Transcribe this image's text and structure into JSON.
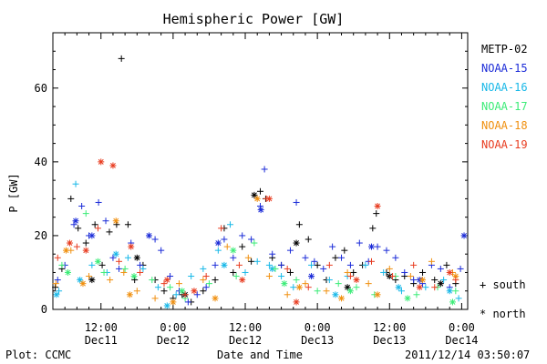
{
  "chart_data": {
    "type": "scatter",
    "title": "Hemispheric Power [GW]",
    "ylabel": "P [GW]",
    "xlabel": "Date and Time",
    "ylim": [
      0,
      75
    ],
    "xlim": [
      "2011-12-11 04:00",
      "2011-12-14 01:00"
    ],
    "yticks": [
      0,
      20,
      40,
      60
    ],
    "xtick_labels": [
      {
        "time": "12:00",
        "date": "Dec11"
      },
      {
        "time": "0:00",
        "date": "Dec12"
      },
      {
        "time": "12:00",
        "date": "Dec12"
      },
      {
        "time": "0:00",
        "date": "Dec13"
      },
      {
        "time": "12:00",
        "date": "Dec13"
      },
      {
        "time": "0:00",
        "date": "Dec14"
      }
    ],
    "markers": {
      "south_label": "+ south",
      "north_label": "* north"
    },
    "series": [
      {
        "name": "METP-02",
        "color": "#000000",
        "points": [
          [
            0.4,
            6
          ],
          [
            1.5,
            11
          ],
          [
            3.0,
            30
          ],
          [
            4.2,
            22
          ],
          [
            5.5,
            18
          ],
          [
            7.0,
            23
          ],
          [
            8.2,
            12
          ],
          [
            9.4,
            21
          ],
          [
            10.6,
            23
          ],
          [
            11.4,
            68
          ],
          [
            12.5,
            23
          ],
          [
            13.6,
            8
          ],
          [
            15.0,
            12
          ],
          [
            17.0,
            8
          ],
          [
            18.5,
            5
          ],
          [
            20.0,
            3
          ],
          [
            21.5,
            4
          ],
          [
            23.0,
            2
          ],
          [
            25.0,
            5
          ],
          [
            27.0,
            8
          ],
          [
            28.5,
            22
          ],
          [
            30.0,
            10
          ],
          [
            31.5,
            17
          ],
          [
            33.0,
            13
          ],
          [
            34.5,
            32
          ],
          [
            35.4,
            30
          ],
          [
            36.5,
            14
          ],
          [
            38.0,
            12
          ],
          [
            39.5,
            10
          ],
          [
            41.0,
            23
          ],
          [
            42.5,
            19
          ],
          [
            44.0,
            12
          ],
          [
            45.5,
            8
          ],
          [
            47.0,
            14
          ],
          [
            48.5,
            16
          ],
          [
            50.0,
            10
          ],
          [
            51.5,
            12
          ],
          [
            53.2,
            22
          ],
          [
            53.8,
            26
          ],
          [
            55.5,
            10
          ],
          [
            57.0,
            8
          ],
          [
            58.5,
            9
          ],
          [
            60.0,
            7
          ],
          [
            61.5,
            10
          ],
          [
            63.5,
            8
          ],
          [
            65.5,
            12
          ],
          [
            67.0,
            7
          ]
        ],
        "north": [
          [
            6.5,
            8
          ],
          [
            14.0,
            14
          ],
          [
            22.0,
            4
          ],
          [
            33.5,
            31
          ],
          [
            40.5,
            18
          ],
          [
            49.0,
            6
          ],
          [
            56.0,
            9
          ],
          [
            64.5,
            7
          ]
        ]
      },
      {
        "name": "NOAA-15",
        "color": "#1c2cd8",
        "points": [
          [
            0.8,
            8
          ],
          [
            2.0,
            12
          ],
          [
            3.5,
            23
          ],
          [
            4.8,
            28
          ],
          [
            6.0,
            20
          ],
          [
            7.6,
            29
          ],
          [
            8.8,
            24
          ],
          [
            10.0,
            14
          ],
          [
            11.0,
            11
          ],
          [
            13.0,
            18
          ],
          [
            14.5,
            12
          ],
          [
            17.0,
            19
          ],
          [
            18.0,
            16
          ],
          [
            19.5,
            9
          ],
          [
            21.0,
            5
          ],
          [
            22.5,
            2
          ],
          [
            24.0,
            4
          ],
          [
            25.5,
            6
          ],
          [
            27.0,
            12
          ],
          [
            28.5,
            19
          ],
          [
            30.0,
            14
          ],
          [
            31.5,
            20
          ],
          [
            33.0,
            19
          ],
          [
            34.5,
            28
          ],
          [
            35.2,
            38
          ],
          [
            36.5,
            15
          ],
          [
            38.0,
            12
          ],
          [
            39.5,
            16
          ],
          [
            40.5,
            29
          ],
          [
            42.0,
            14
          ],
          [
            43.5,
            13
          ],
          [
            45.0,
            11
          ],
          [
            46.5,
            17
          ],
          [
            48.0,
            14
          ],
          [
            49.5,
            12
          ],
          [
            51.0,
            18
          ],
          [
            52.5,
            13
          ],
          [
            54.0,
            17
          ],
          [
            55.5,
            16
          ],
          [
            57.0,
            14
          ],
          [
            58.5,
            10
          ],
          [
            60.0,
            8
          ],
          [
            61.5,
            7
          ],
          [
            63.0,
            12
          ],
          [
            64.5,
            11
          ],
          [
            66.0,
            6
          ],
          [
            67.8,
            11
          ]
        ],
        "north": [
          [
            3.8,
            24
          ],
          [
            6.5,
            20
          ],
          [
            16.0,
            20
          ],
          [
            27.5,
            18
          ],
          [
            34.6,
            27
          ],
          [
            43.0,
            9
          ],
          [
            53.0,
            17
          ],
          [
            61.0,
            8
          ],
          [
            68.4,
            20
          ]
        ]
      },
      {
        "name": "NOAA-16",
        "color": "#18b8e8",
        "points": [
          [
            1.0,
            5
          ],
          [
            3.8,
            34
          ],
          [
            6.5,
            12
          ],
          [
            9.0,
            10
          ],
          [
            12.5,
            14
          ],
          [
            15.0,
            11
          ],
          [
            17.5,
            6
          ],
          [
            20.5,
            4
          ],
          [
            23.0,
            9
          ],
          [
            25.0,
            11
          ],
          [
            27.5,
            16
          ],
          [
            29.5,
            23
          ],
          [
            32.0,
            10
          ],
          [
            34.0,
            13
          ],
          [
            36.0,
            12
          ],
          [
            38.0,
            9
          ],
          [
            40.0,
            6
          ],
          [
            43.0,
            12
          ],
          [
            46.0,
            8
          ],
          [
            49.0,
            9
          ],
          [
            52.0,
            12
          ],
          [
            55.0,
            10
          ],
          [
            58.0,
            5
          ],
          [
            62.0,
            6
          ],
          [
            65.0,
            8
          ],
          [
            67.5,
            3
          ]
        ],
        "north": [
          [
            0.6,
            4
          ],
          [
            4.5,
            8
          ],
          [
            10.5,
            15
          ],
          [
            19.0,
            1
          ],
          [
            28.5,
            12
          ],
          [
            36.5,
            11
          ],
          [
            47.0,
            4
          ],
          [
            57.5,
            6
          ],
          [
            66.0,
            5
          ]
        ]
      },
      {
        "name": "NOAA-17",
        "color": "#3cec78",
        "points": [
          [
            1.5,
            12
          ],
          [
            5.5,
            26
          ],
          [
            8.5,
            10
          ],
          [
            12.0,
            11
          ],
          [
            16.5,
            8
          ],
          [
            19.5,
            6
          ],
          [
            22.0,
            3
          ],
          [
            26.0,
            7
          ],
          [
            30.5,
            9
          ],
          [
            33.5,
            18
          ],
          [
            37.0,
            11
          ],
          [
            40.5,
            8
          ],
          [
            44.0,
            5
          ],
          [
            47.5,
            7
          ],
          [
            50.5,
            6
          ],
          [
            53.5,
            4
          ],
          [
            57.0,
            9
          ],
          [
            60.5,
            4
          ],
          [
            64.0,
            6
          ],
          [
            67.0,
            5
          ]
        ],
        "north": [
          [
            2.5,
            10
          ],
          [
            7.5,
            13
          ],
          [
            13.5,
            9
          ],
          [
            21.5,
            5
          ],
          [
            30.0,
            16
          ],
          [
            38.5,
            7
          ],
          [
            49.5,
            5
          ],
          [
            59.0,
            3
          ],
          [
            66.5,
            2
          ]
        ]
      },
      {
        "name": "NOAA-18",
        "color": "#f09010",
        "points": [
          [
            0.5,
            7
          ],
          [
            3.0,
            16
          ],
          [
            6.0,
            9
          ],
          [
            9.5,
            8
          ],
          [
            11.8,
            10
          ],
          [
            14.0,
            5
          ],
          [
            17.0,
            3
          ],
          [
            21.0,
            7
          ],
          [
            25.0,
            8
          ],
          [
            29.0,
            17
          ],
          [
            32.5,
            14
          ],
          [
            36.0,
            9
          ],
          [
            39.0,
            4
          ],
          [
            42.0,
            7
          ],
          [
            45.5,
            5
          ],
          [
            49.0,
            10
          ],
          [
            52.5,
            7
          ],
          [
            56.0,
            11
          ],
          [
            59.5,
            9
          ],
          [
            63.0,
            13
          ],
          [
            66.5,
            10
          ]
        ],
        "north": [
          [
            2.2,
            16
          ],
          [
            5.0,
            7
          ],
          [
            10.5,
            24
          ],
          [
            12.8,
            4
          ],
          [
            20.0,
            2
          ],
          [
            27.0,
            3
          ],
          [
            34.0,
            30
          ],
          [
            41.0,
            6
          ],
          [
            48.0,
            3
          ],
          [
            54.0,
            4
          ],
          [
            61.5,
            8
          ],
          [
            67.0,
            9
          ]
        ]
      },
      {
        "name": "NOAA-19",
        "color": "#e83c20",
        "points": [
          [
            0.8,
            14
          ],
          [
            4.0,
            17
          ],
          [
            7.5,
            22
          ],
          [
            11.0,
            13
          ],
          [
            14.5,
            10
          ],
          [
            18.5,
            7
          ],
          [
            22.0,
            4
          ],
          [
            25.5,
            9
          ],
          [
            28.0,
            22
          ],
          [
            31.0,
            12
          ],
          [
            35.5,
            30
          ],
          [
            39.0,
            11
          ],
          [
            42.5,
            6
          ],
          [
            46.0,
            12
          ],
          [
            49.5,
            9
          ],
          [
            53.0,
            13
          ],
          [
            56.5,
            9
          ],
          [
            60.0,
            12
          ],
          [
            63.5,
            6
          ],
          [
            67.0,
            8
          ]
        ],
        "north": [
          [
            2.8,
            18
          ],
          [
            5.5,
            16
          ],
          [
            8.0,
            40
          ],
          [
            10.0,
            39
          ],
          [
            13.0,
            17
          ],
          [
            19.0,
            8
          ],
          [
            23.5,
            5
          ],
          [
            31.5,
            8
          ],
          [
            36.0,
            30
          ],
          [
            40.5,
            2
          ],
          [
            50.5,
            8
          ],
          [
            54.0,
            28
          ],
          [
            61.0,
            6
          ],
          [
            66.0,
            10
          ]
        ]
      }
    ]
  },
  "legend": {
    "items": [
      {
        "label": "METP-02",
        "color": "#000000"
      },
      {
        "label": "NOAA-15",
        "color": "#1c2cd8"
      },
      {
        "label": "NOAA-16",
        "color": "#18b8e8"
      },
      {
        "label": "NOAA-17",
        "color": "#3cec78"
      },
      {
        "label": "NOAA-18",
        "color": "#f09010"
      },
      {
        "label": "NOAA-19",
        "color": "#e83c20"
      }
    ]
  },
  "footer": {
    "plot_label": "Plot: CCMC",
    "axis_caption": "Date and Time",
    "timestamp": "2011/12/14 03:50:07"
  }
}
